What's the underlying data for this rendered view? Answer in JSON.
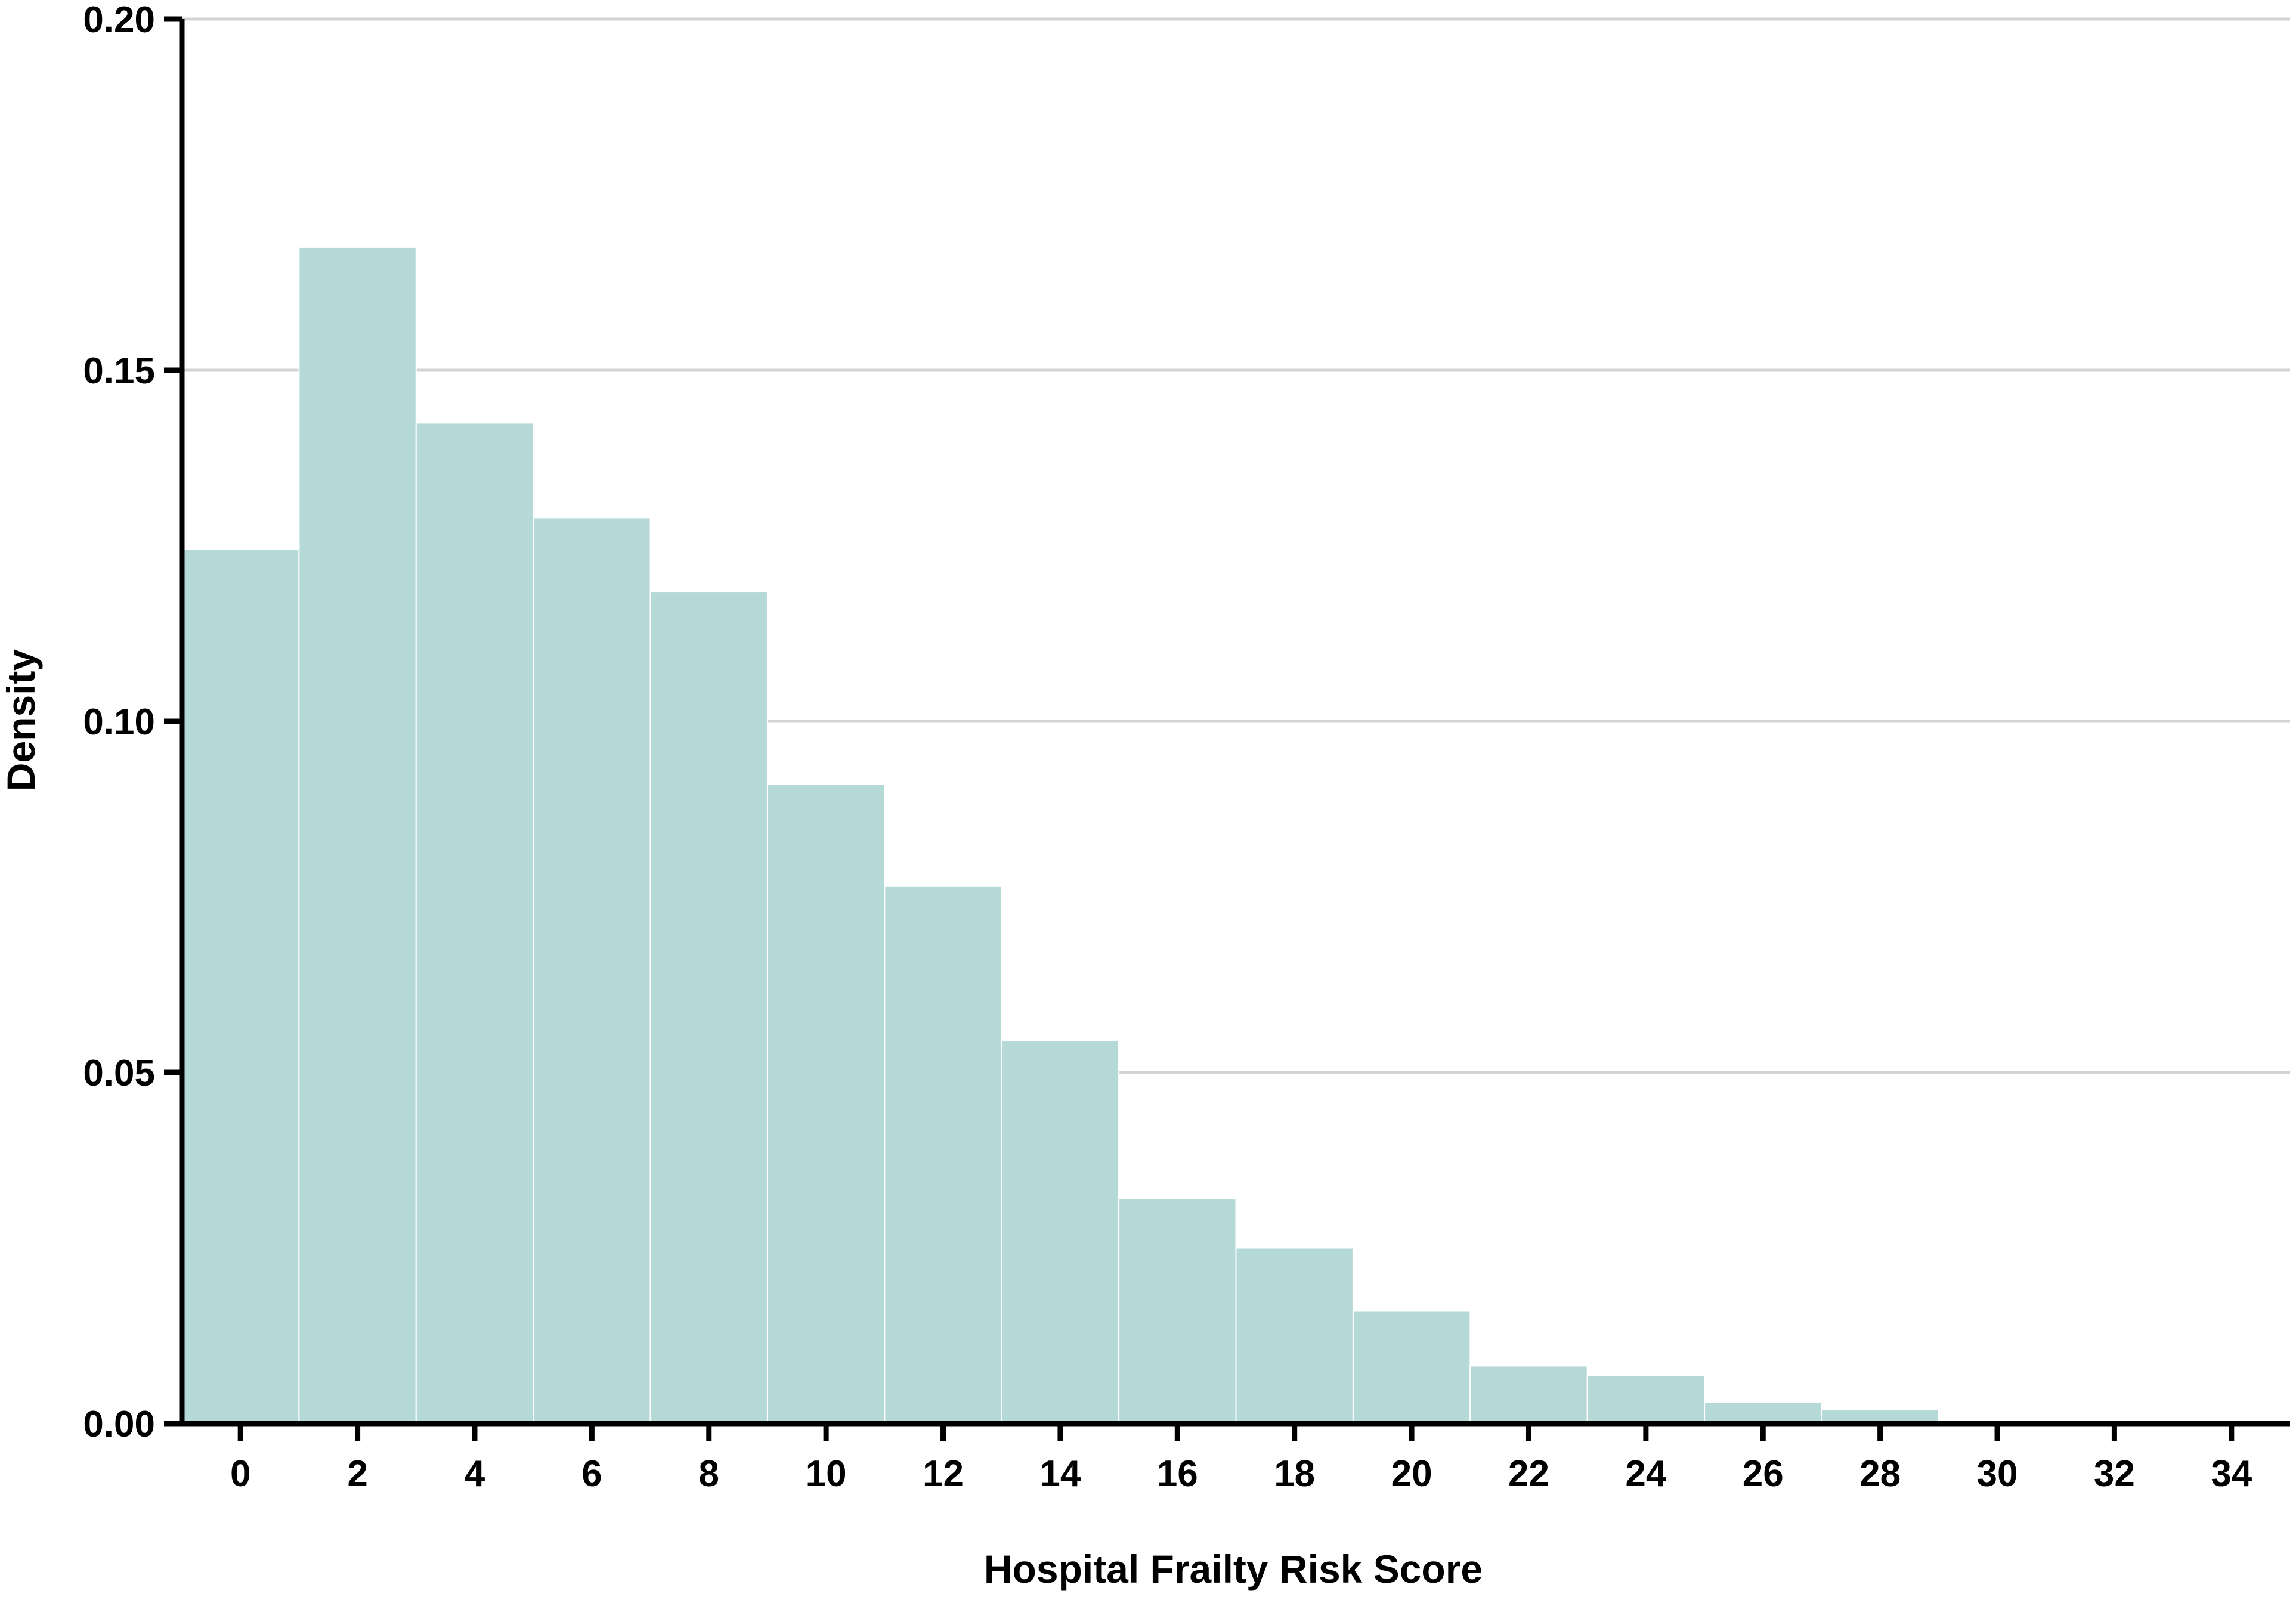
{
  "chart_data": {
    "type": "bar",
    "title": "",
    "xlabel": "Hospital Frailty Risk Score",
    "ylabel": "Density",
    "xlim": [
      -1,
      35
    ],
    "ylim": [
      0,
      0.2
    ],
    "x_ticks": [
      0,
      2,
      4,
      6,
      8,
      10,
      12,
      14,
      16,
      18,
      20,
      22,
      24,
      26,
      28,
      30,
      32,
      34
    ],
    "x_tick_labels": [
      "0",
      "2",
      "4",
      "6",
      "8",
      "10",
      "12",
      "14",
      "16",
      "18",
      "20",
      "22",
      "24",
      "26",
      "28",
      "30",
      "32",
      "34"
    ],
    "y_ticks": [
      0,
      0.05,
      0.1,
      0.15,
      0.2
    ],
    "y_tick_labels": [
      "0.00",
      "0.05",
      "0.10",
      "0.15",
      "0.20"
    ],
    "grid": "horizontal",
    "bin_width": 2,
    "bin_starts": [
      -1,
      1,
      3,
      5,
      7,
      9,
      11,
      13,
      15,
      17,
      19,
      21,
      23,
      25,
      27
    ],
    "bin_centers": [
      0,
      2,
      4,
      6,
      8,
      10,
      12,
      14,
      16,
      18,
      20,
      22,
      24,
      26,
      28
    ],
    "values": [
      0.1245,
      0.1675,
      0.1425,
      0.129,
      0.1185,
      0.091,
      0.0765,
      0.0545,
      0.032,
      0.025,
      0.016,
      0.0082,
      0.0068,
      0.003,
      0.002
    ],
    "colors": {
      "bar": "#b5d9d7",
      "bar_edge": "#ffffff",
      "grid": "#d3d3d3",
      "axis": "#000000"
    }
  }
}
